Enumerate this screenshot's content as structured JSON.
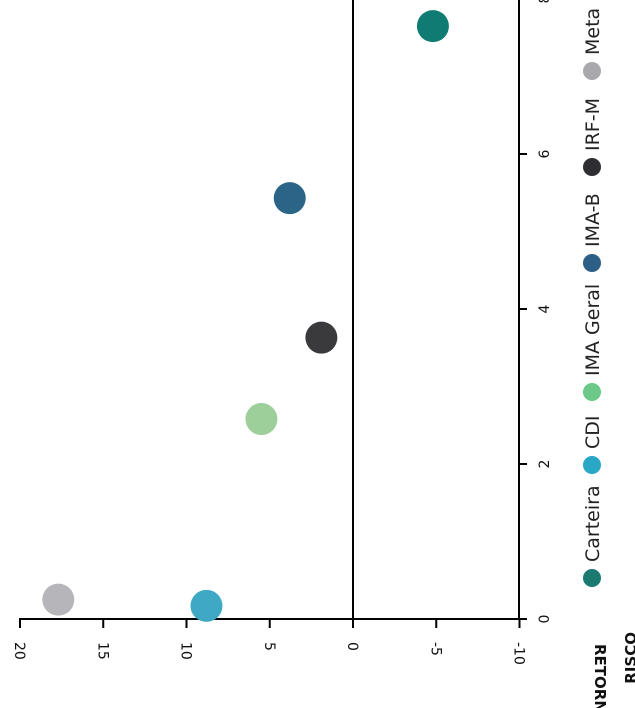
{
  "chart_data": {
    "type": "scatter",
    "xlabel": "RISCO",
    "ylabel": "RETORNO",
    "xlim": [
      0,
      8
    ],
    "ylim": [
      -10,
      20
    ],
    "x_ticks": [
      "0",
      "2",
      "4",
      "6",
      "8"
    ],
    "y_ticks": [
      "-10",
      "-5",
      "0",
      "5",
      "10",
      "15",
      "20"
    ],
    "legend_position": "right",
    "series": [
      {
        "name": "Carteira",
        "color": "#0f7b73",
        "x": 7.65,
        "y": -4.8
      },
      {
        "name": "CDI",
        "color": "#3fa8c4",
        "x": 0.17,
        "y": 8.8
      },
      {
        "name": "IMA Geral",
        "color": "#9ccf9a",
        "x": 2.58,
        "y": 5.5
      },
      {
        "name": "IMA-B",
        "color": "#2a6588",
        "x": 5.43,
        "y": 3.8
      },
      {
        "name": "IRF-M",
        "color": "#3a3a3d",
        "x": 3.63,
        "y": 1.9
      },
      {
        "name": "Meta",
        "color": "#b5b5ba",
        "x": 0.25,
        "y": 17.7
      }
    ],
    "legend_items": [
      {
        "name": "Carteira",
        "color": "#1a7a72"
      },
      {
        "name": "CDI",
        "color": "#2aa6c6"
      },
      {
        "name": "IMA Geral",
        "color": "#6cc98a"
      },
      {
        "name": "IMA-B",
        "color": "#2c5e86"
      },
      {
        "name": "IRF-M",
        "color": "#2e2e33"
      },
      {
        "name": "Meta",
        "color": "#a9a9ad"
      }
    ]
  }
}
